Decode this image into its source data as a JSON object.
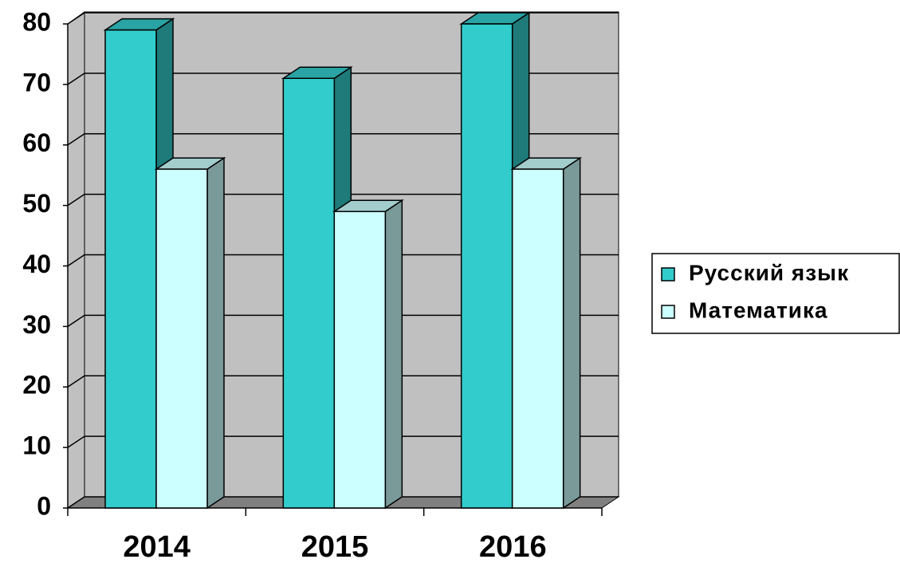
{
  "chart_data": {
    "type": "bar3d",
    "categories": [
      "2014",
      "2015",
      "2016"
    ],
    "series": [
      {
        "name": "Русский язык",
        "color": "#33cccc",
        "values": [
          79,
          71,
          80
        ]
      },
      {
        "name": "Математика",
        "color": "#ccffff",
        "values": [
          56,
          49,
          56
        ]
      }
    ],
    "ylim": [
      0,
      80
    ],
    "yticks": [
      0,
      10,
      20,
      30,
      40,
      50,
      60,
      70,
      80
    ],
    "grid": true,
    "legend": "right"
  }
}
